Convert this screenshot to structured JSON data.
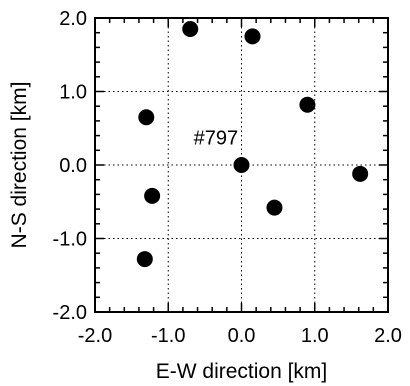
{
  "chart_data": {
    "type": "scatter",
    "title": "",
    "xlabel": "E-W direction [km]",
    "ylabel": "N-S direction [km]",
    "xlim": [
      -2.0,
      2.0
    ],
    "ylim": [
      -2.0,
      2.0
    ],
    "x_ticks": [
      -2.0,
      -1.0,
      0.0,
      1.0,
      2.0
    ],
    "y_ticks": [
      -2.0,
      -1.0,
      0.0,
      1.0,
      2.0
    ],
    "x_tick_labels": [
      "-2.0",
      "-1.0",
      "0.0",
      "1.0",
      "2.0"
    ],
    "y_tick_labels": [
      "-2.0",
      "-1.0",
      "0.0",
      "1.0",
      "2.0"
    ],
    "grid": true,
    "annotation": "#797",
    "series": [
      {
        "points": [
          {
            "x": -0.7,
            "y": 1.85
          },
          {
            "x": 0.15,
            "y": 1.75
          },
          {
            "x": -1.3,
            "y": 0.65
          },
          {
            "x": 0.9,
            "y": 0.82
          },
          {
            "x": 0.0,
            "y": 0.0
          },
          {
            "x": 1.62,
            "y": -0.12
          },
          {
            "x": -1.22,
            "y": -0.42
          },
          {
            "x": 0.45,
            "y": -0.58
          },
          {
            "x": -1.32,
            "y": -1.28
          }
        ]
      }
    ]
  }
}
